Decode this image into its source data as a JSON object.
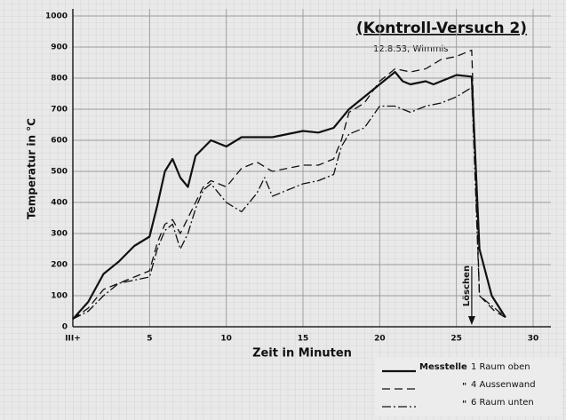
{
  "chart_data": {
    "type": "line",
    "title": "(Kontroll-Versuch 2)",
    "subtitle": "12.8.53, Wimmis",
    "x_label": "Zeit in Minuten",
    "y_label": "Temperatur in °C",
    "annotation": "Löschen",
    "annotation_x": 26,
    "legend_title": "Messtelle",
    "legend_ditto": "\"",
    "legend_position": "lower right",
    "grid": true,
    "xlim": [
      0,
      30
    ],
    "xticks": [
      {
        "value": 0,
        "label": "III+"
      },
      5,
      10,
      15,
      20,
      25,
      30
    ],
    "ylim": [
      0,
      1000
    ],
    "yticks": [
      0,
      100,
      200,
      300,
      400,
      500,
      600,
      700,
      800,
      900,
      1000
    ],
    "series": [
      {
        "name": "1 Raum oben",
        "color": "#111111",
        "style": "solid",
        "x": [
          0,
          1,
          2,
          3,
          4,
          5,
          5.5,
          6,
          6.5,
          7,
          7.5,
          8,
          9,
          10,
          11,
          13,
          14,
          15,
          16,
          17,
          18,
          19,
          20,
          21,
          21.5,
          22,
          23,
          23.5,
          24,
          25,
          26,
          26.5,
          27.3,
          28.2
        ],
        "values": [
          25,
          80,
          170,
          210,
          260,
          290,
          390,
          500,
          540,
          480,
          450,
          550,
          600,
          580,
          610,
          610,
          620,
          630,
          625,
          640,
          700,
          740,
          780,
          820,
          790,
          780,
          790,
          780,
          790,
          810,
          805,
          250,
          100,
          30
        ]
      },
      {
        "name": "4 Aussenwand",
        "color": "#111111",
        "style": "dashed",
        "x": [
          0,
          1,
          2,
          3,
          4,
          5,
          5.5,
          6,
          6.5,
          7,
          8,
          8.5,
          9,
          10,
          11,
          12,
          13,
          14,
          15,
          16,
          17,
          17.5,
          18,
          19,
          20,
          21,
          22,
          23,
          24,
          25,
          26,
          26.5,
          27.5,
          28.2
        ],
        "values": [
          25,
          60,
          120,
          140,
          160,
          180,
          270,
          330,
          345,
          300,
          400,
          450,
          470,
          450,
          510,
          530,
          500,
          510,
          520,
          520,
          540,
          600,
          690,
          720,
          790,
          830,
          820,
          830,
          860,
          870,
          890,
          100,
          50,
          30
        ]
      },
      {
        "name": "6 Raum unten",
        "color": "#111111",
        "style": "dashdot",
        "x": [
          0,
          1,
          2,
          3,
          4,
          5,
          5.5,
          6,
          6.5,
          7,
          7.5,
          8,
          8.5,
          9,
          10,
          11,
          12,
          12.5,
          13,
          14,
          15,
          16,
          17,
          17.5,
          18,
          19,
          20,
          21,
          22,
          23,
          24,
          25,
          26,
          26.5,
          27.5,
          28.2
        ],
        "values": [
          25,
          50,
          100,
          140,
          150,
          160,
          250,
          310,
          330,
          250,
          300,
          380,
          440,
          460,
          400,
          370,
          430,
          480,
          420,
          440,
          460,
          470,
          490,
          580,
          620,
          640,
          710,
          710,
          690,
          710,
          720,
          740,
          770,
          100,
          60,
          30
        ]
      }
    ]
  }
}
